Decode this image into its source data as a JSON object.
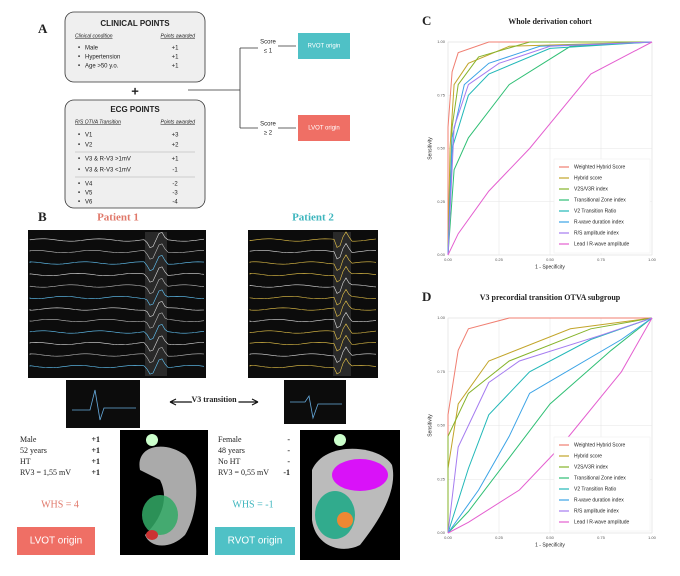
{
  "panel_a": {
    "label": "A",
    "clinical": {
      "title": "CLINICAL POINTS",
      "header": [
        "Clinical condition",
        "Points awarded"
      ],
      "rows": [
        [
          "Male",
          "+1"
        ],
        [
          "Hypertension",
          "+1"
        ],
        [
          "Age >50 y.o.",
          "+1"
        ]
      ]
    },
    "plus": "+",
    "ecg": {
      "title": "ECG POINTS",
      "header": [
        "R/S OTVA Transition",
        "Points awarded"
      ],
      "rows": [
        [
          "V1",
          "+3"
        ],
        [
          "V2",
          "+2"
        ],
        [
          "V3 & R-V3 >1mV",
          "+1"
        ],
        [
          "V3 & R-V3 <1mV",
          "-1"
        ],
        [
          "V4",
          "-2"
        ],
        [
          "V5",
          "-3"
        ],
        [
          "V6",
          "-4"
        ]
      ]
    },
    "score_low": [
      "Score",
      "≤ 1"
    ],
    "score_high": [
      "Score",
      "≥ 2"
    ],
    "rvot": "RVOT origin",
    "lvot": "LVOT origin"
  },
  "panel_b": {
    "label": "B",
    "transition": "V3 transition",
    "patients": [
      {
        "name": "Patient 1",
        "rows": [
          [
            "Male",
            "+1"
          ],
          [
            "52 years",
            "+1"
          ],
          [
            "HT",
            "+1"
          ],
          [
            "RV3 = 1,55 mV",
            "+1"
          ]
        ],
        "score": "WHS = 4",
        "origin": "LVOT origin"
      },
      {
        "name": "Patient 2",
        "rows": [
          [
            "Female",
            "-"
          ],
          [
            "48 years",
            "-"
          ],
          [
            "No HT",
            "-"
          ],
          [
            "RV3 = 0,55 mV",
            "-1"
          ]
        ],
        "score": "WHS = -1",
        "origin": "RVOT origin"
      }
    ]
  },
  "chart_data": [
    {
      "type": "line",
      "panel": "C",
      "title": "Whole derivation cohort",
      "xlabel": "1 - Specificity",
      "ylabel": "Sensitivity",
      "xlim": [
        0,
        1
      ],
      "ylim": [
        0,
        1
      ],
      "grid": true,
      "legend": "lower right",
      "xticks": [
        {
          "value": 0,
          "label": "0.00"
        },
        {
          "value": 0.25,
          "label": "0.25"
        },
        {
          "value": 0.5,
          "label": "0.50"
        },
        {
          "value": 0.75,
          "label": "0.75"
        },
        {
          "value": 1,
          "label": "1.00"
        }
      ],
      "yticks": [
        {
          "value": 0,
          "label": "0.00"
        },
        {
          "value": 0.25,
          "label": "0.25"
        },
        {
          "value": 0.5,
          "label": "0.50"
        },
        {
          "value": 0.75,
          "label": "0.75"
        },
        {
          "value": 1,
          "label": "1.00"
        }
      ],
      "series": [
        {
          "name": "Weighted Hybrid Score",
          "color": "#f07f72",
          "x": [
            0,
            0,
            0.02,
            0.05,
            0.2,
            1
          ],
          "values": [
            0,
            0.6,
            0.86,
            0.95,
            1,
            1
          ]
        },
        {
          "name": "Hybrid score",
          "color": "#c2a52a",
          "x": [
            0,
            0.01,
            0.03,
            0.1,
            0.3,
            1
          ],
          "values": [
            0,
            0.5,
            0.8,
            0.9,
            0.98,
            1
          ]
        },
        {
          "name": "V2S/V3R index",
          "color": "#86b32a",
          "x": [
            0,
            0.02,
            0.05,
            0.15,
            0.4,
            1
          ],
          "values": [
            0,
            0.6,
            0.8,
            0.93,
            1,
            1
          ]
        },
        {
          "name": "Transitional Zone index",
          "color": "#2fbf74",
          "x": [
            0,
            0.03,
            0.1,
            0.3,
            0.6,
            1
          ],
          "values": [
            0,
            0.4,
            0.55,
            0.8,
            0.98,
            1
          ]
        },
        {
          "name": "V2 Transition Ratio",
          "color": "#22b8b8",
          "x": [
            0,
            0.02,
            0.1,
            0.2,
            0.5,
            1
          ],
          "values": [
            0,
            0.5,
            0.75,
            0.85,
            0.97,
            1
          ]
        },
        {
          "name": "R-wave duration index",
          "color": "#3ba3e6",
          "x": [
            0,
            0.02,
            0.08,
            0.2,
            0.45,
            1
          ],
          "values": [
            0,
            0.55,
            0.8,
            0.9,
            0.98,
            1
          ]
        },
        {
          "name": "R/S amplitude index",
          "color": "#a57cf0",
          "x": [
            0,
            0.03,
            0.1,
            0.25,
            0.5,
            1
          ],
          "values": [
            0,
            0.6,
            0.8,
            0.9,
            0.98,
            1
          ]
        },
        {
          "name": "Lead I R-wave amplitude",
          "color": "#e45fd0",
          "x": [
            0,
            0.05,
            0.2,
            0.4,
            0.7,
            1
          ],
          "values": [
            0,
            0.1,
            0.3,
            0.5,
            0.85,
            1
          ]
        }
      ]
    },
    {
      "type": "line",
      "panel": "D",
      "title": "V3 precordial transition OTVA subgroup",
      "xlabel": "1 - Specificity",
      "ylabel": "Sensitivity",
      "xlim": [
        0,
        1
      ],
      "ylim": [
        0,
        1
      ],
      "grid": true,
      "legend": "lower right",
      "xticks": [
        {
          "value": 0,
          "label": "0.00"
        },
        {
          "value": 0.25,
          "label": "0.25"
        },
        {
          "value": 0.5,
          "label": "0.50"
        },
        {
          "value": 0.75,
          "label": "0.75"
        },
        {
          "value": 1,
          "label": "1.00"
        }
      ],
      "yticks": [
        {
          "value": 0,
          "label": "0.00"
        },
        {
          "value": 0.25,
          "label": "0.25"
        },
        {
          "value": 0.5,
          "label": "0.50"
        },
        {
          "value": 0.75,
          "label": "0.75"
        },
        {
          "value": 1,
          "label": "1.00"
        }
      ],
      "series": [
        {
          "name": "Weighted Hybrid Score",
          "color": "#f07f72",
          "x": [
            0,
            0,
            0.05,
            0.1,
            0.3,
            1
          ],
          "values": [
            0,
            0.55,
            0.85,
            0.95,
            1,
            1
          ]
        },
        {
          "name": "Hybrid score",
          "color": "#c2a52a",
          "x": [
            0,
            0,
            0.05,
            0.2,
            0.6,
            1
          ],
          "values": [
            0,
            0.3,
            0.6,
            0.8,
            0.95,
            1
          ]
        },
        {
          "name": "V2S/V3R index",
          "color": "#86b32a",
          "x": [
            0,
            0,
            0.1,
            0.3,
            0.7,
            1
          ],
          "values": [
            0,
            0.45,
            0.65,
            0.8,
            0.95,
            1
          ]
        },
        {
          "name": "Transitional Zone index",
          "color": "#2fbf74",
          "x": [
            0,
            0.1,
            0.3,
            0.5,
            0.8,
            1
          ],
          "values": [
            0,
            0.1,
            0.35,
            0.6,
            0.85,
            1
          ]
        },
        {
          "name": "V2 Transition Ratio",
          "color": "#22b8b8",
          "x": [
            0,
            0.1,
            0.2,
            0.4,
            0.7,
            1
          ],
          "values": [
            0,
            0.3,
            0.55,
            0.75,
            0.9,
            1
          ]
        },
        {
          "name": "R-wave duration index",
          "color": "#3ba3e6",
          "x": [
            0,
            0.15,
            0.3,
            0.4,
            0.85,
            1
          ],
          "values": [
            0,
            0.2,
            0.45,
            0.65,
            0.9,
            1
          ]
        },
        {
          "name": "R/S amplitude index",
          "color": "#a57cf0",
          "x": [
            0,
            0.05,
            0.2,
            0.35,
            0.75,
            1
          ],
          "values": [
            0,
            0.4,
            0.7,
            0.8,
            0.92,
            1
          ]
        },
        {
          "name": "Lead I R-wave amplitude",
          "color": "#e45fd0",
          "x": [
            0,
            0.1,
            0.35,
            0.55,
            0.85,
            1
          ],
          "values": [
            0,
            0.05,
            0.2,
            0.4,
            0.75,
            1
          ]
        }
      ]
    }
  ]
}
